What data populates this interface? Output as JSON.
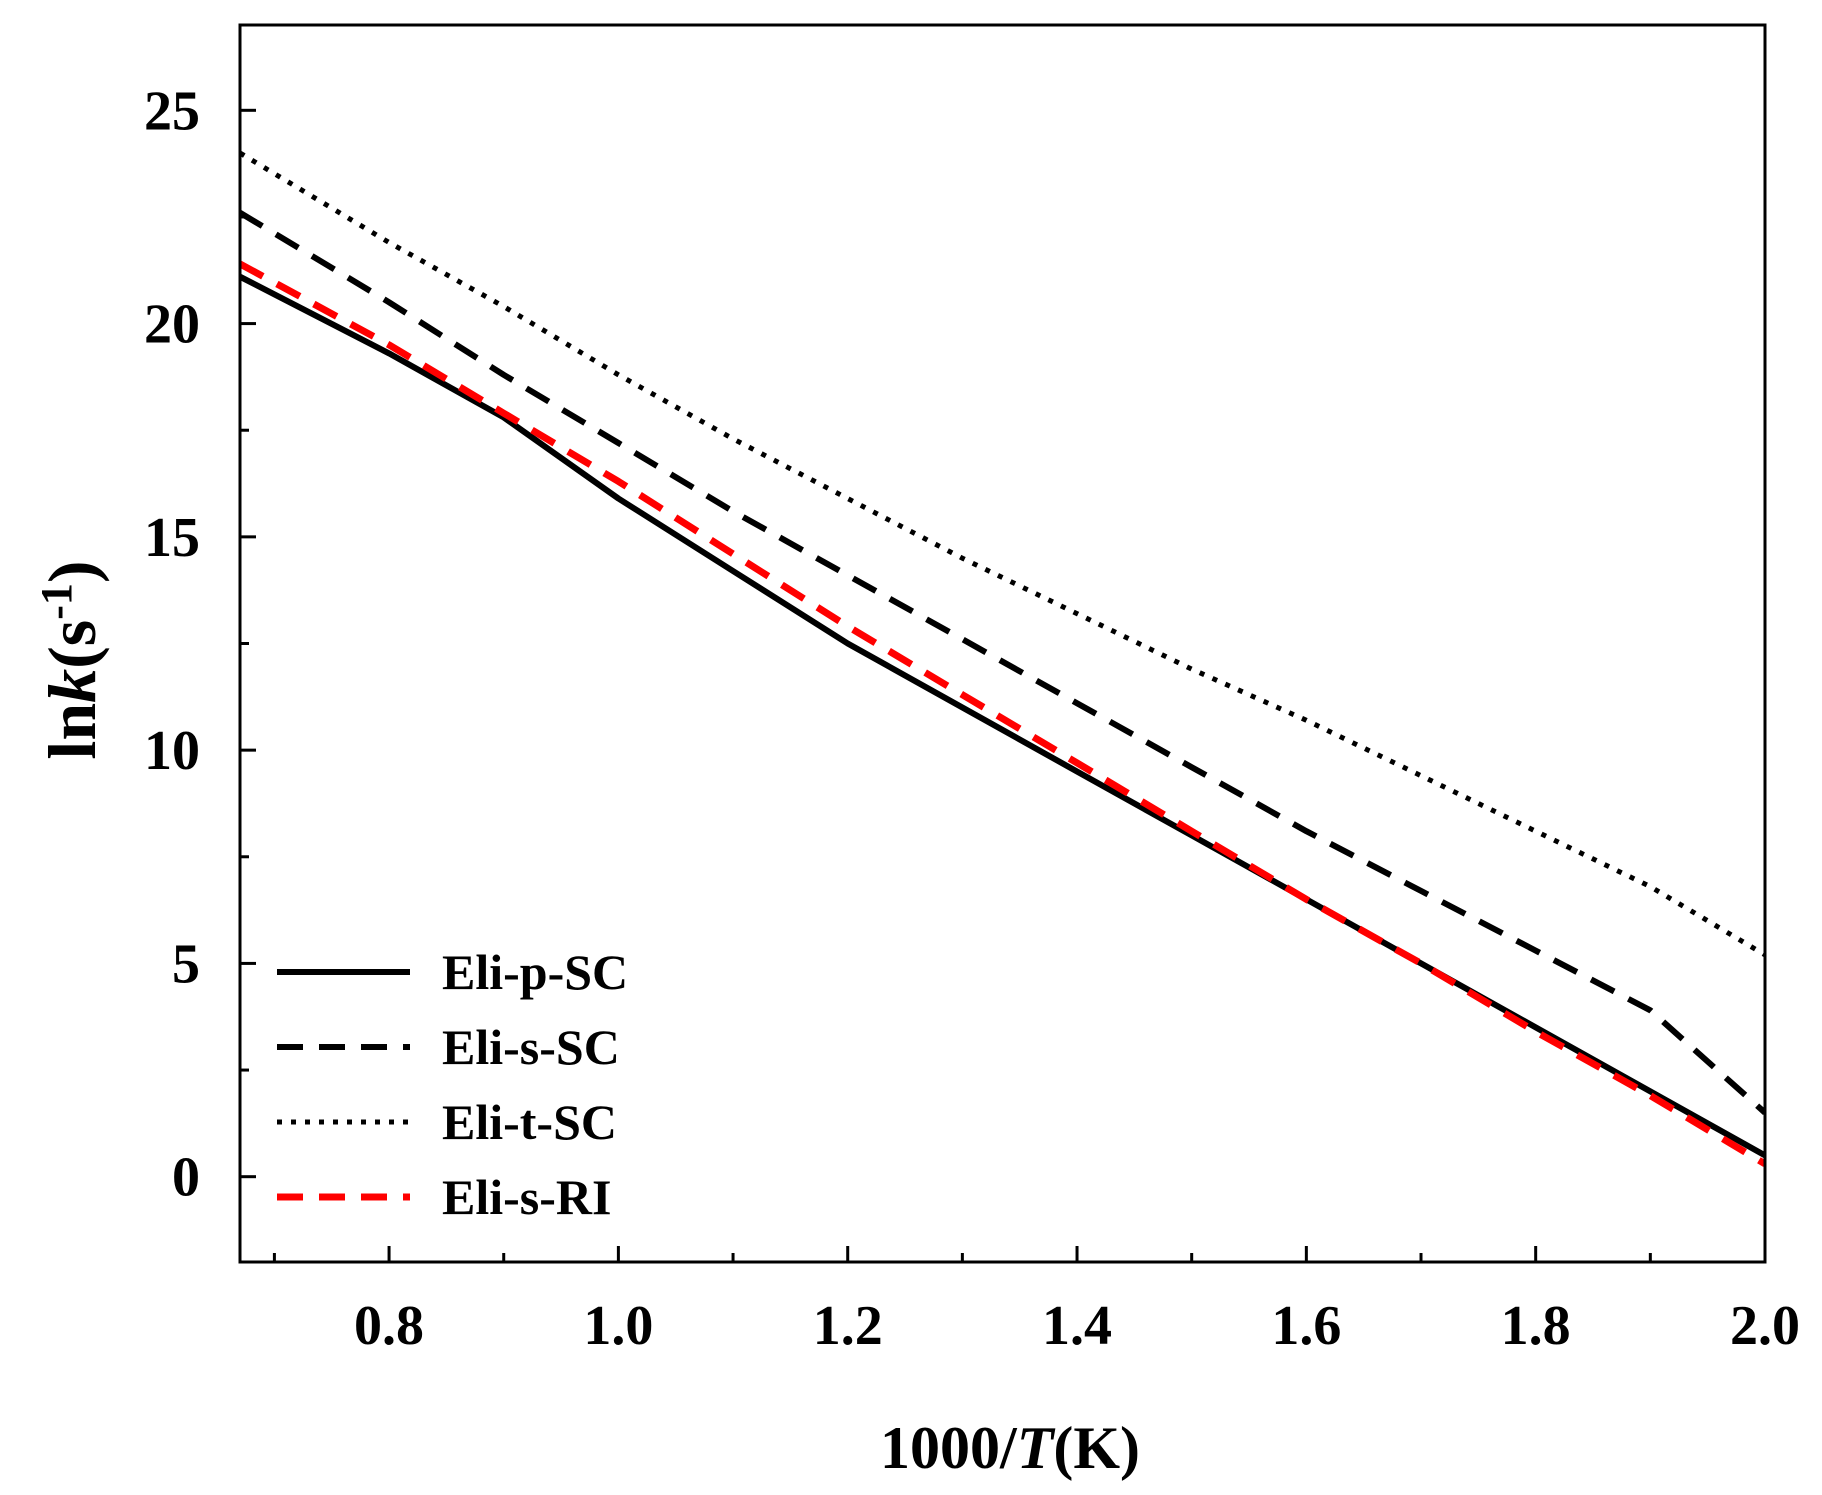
{
  "chart_data": {
    "type": "line",
    "title": "",
    "xlabel": {
      "main": "1000/",
      "var": "T",
      "unit": "(K)"
    },
    "ylabel": {
      "main": "ln",
      "var": "k",
      "unit": "(s",
      "sup": "-1",
      "close": ")"
    },
    "xlim": [
      0.67,
      2.0
    ],
    "ylim": [
      -2,
      27
    ],
    "x_ticks": [
      0.8,
      1.0,
      1.2,
      1.4,
      1.6,
      1.8,
      2.0
    ],
    "x_tick_labels": [
      "0.8",
      "1.0",
      "1.2",
      "1.4",
      "1.6",
      "1.8",
      "2.0"
    ],
    "x_minor_ticks": [
      0.7,
      0.9,
      1.1,
      1.3,
      1.5,
      1.7,
      1.9
    ],
    "y_ticks": [
      0,
      5,
      10,
      15,
      20,
      25
    ],
    "y_tick_labels": [
      "0",
      "5",
      "10",
      "15",
      "20",
      "25"
    ],
    "y_minor_ticks": [
      2.5,
      7.5,
      12.5,
      17.5,
      22.5
    ],
    "grid": false,
    "legend_position": "bottom-left",
    "series": [
      {
        "name": "Eli-p-SC",
        "style": "solid",
        "color": "#000000",
        "x": [
          0.67,
          0.8,
          0.9,
          1.0,
          1.1,
          1.2,
          1.3,
          1.4,
          1.5,
          1.6,
          1.7,
          1.8,
          1.9,
          2.0
        ],
        "y": [
          21.1,
          19.3,
          17.8,
          15.9,
          14.2,
          12.5,
          11.0,
          9.5,
          8.0,
          6.5,
          5.0,
          3.5,
          2.0,
          0.5
        ]
      },
      {
        "name": "Eli-s-SC",
        "style": "dashed",
        "color": "#000000",
        "x": [
          0.67,
          0.8,
          0.9,
          1.0,
          1.1,
          1.2,
          1.3,
          1.4,
          1.5,
          1.6,
          1.7,
          1.8,
          1.9,
          2.0
        ],
        "y": [
          22.6,
          20.5,
          18.8,
          17.2,
          15.6,
          14.1,
          12.6,
          11.1,
          9.6,
          8.1,
          6.7,
          5.3,
          3.9,
          1.5
        ]
      },
      {
        "name": "Eli-t-SC",
        "style": "dotted",
        "color": "#000000",
        "x": [
          0.67,
          0.8,
          0.9,
          1.0,
          1.1,
          1.2,
          1.3,
          1.4,
          1.5,
          1.6,
          1.7,
          1.8,
          1.9,
          2.0
        ],
        "y": [
          24.0,
          21.9,
          20.4,
          18.8,
          17.3,
          15.9,
          14.5,
          13.2,
          11.9,
          10.7,
          9.4,
          8.1,
          6.8,
          5.2
        ]
      },
      {
        "name": "Eli-s-RI",
        "style": "dashed",
        "color": "#ff0000",
        "x": [
          0.67,
          0.8,
          0.9,
          1.0,
          1.1,
          1.2,
          1.3,
          1.4,
          1.5,
          1.6,
          1.7,
          1.8,
          1.9,
          2.0
        ],
        "y": [
          21.4,
          19.5,
          17.9,
          16.3,
          14.6,
          12.9,
          11.3,
          9.7,
          8.1,
          6.5,
          5.0,
          3.4,
          1.9,
          0.3
        ]
      }
    ]
  }
}
